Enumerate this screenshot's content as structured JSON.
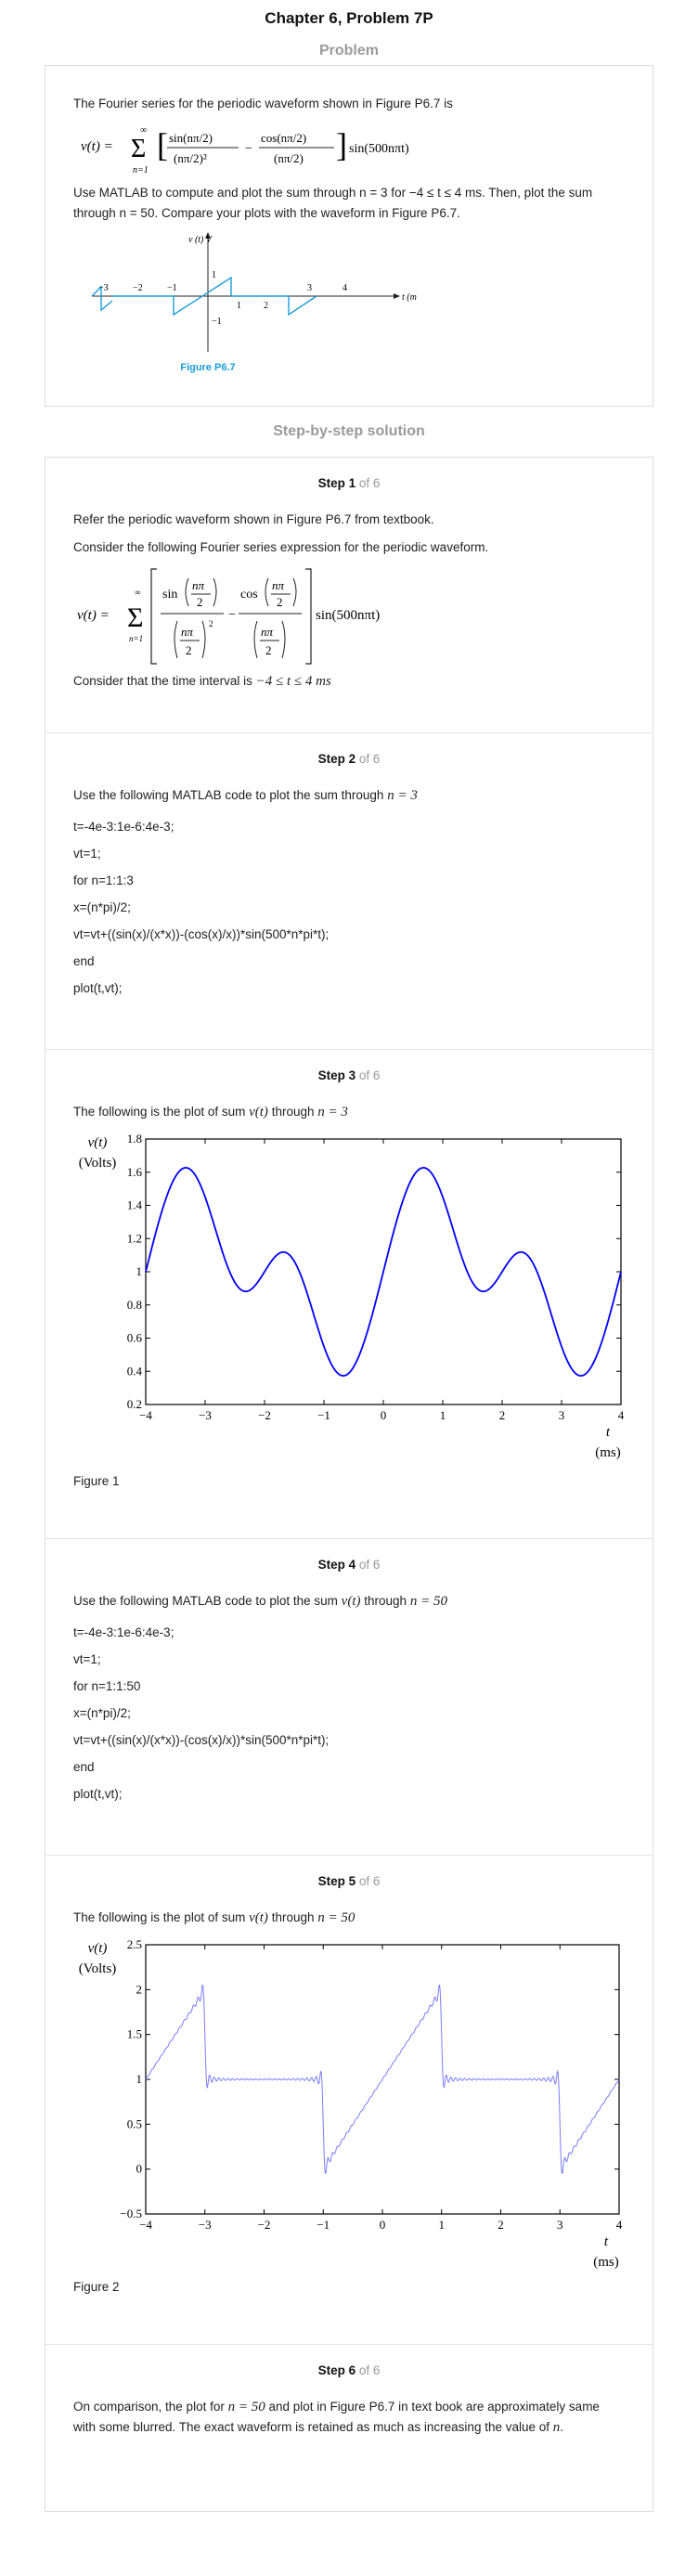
{
  "header": {
    "title": "Chapter 6, Problem 7P"
  },
  "problem": {
    "section_title": "Problem",
    "intro": "The Fourier series for the periodic waveform shown in Figure P6.7 is",
    "equation": {
      "lhs": "v(t) =",
      "sum_top": "∞",
      "sum_bottom": "n=1",
      "t1_num": "sin(nπ/2)",
      "t1_den": "(nπ/2)²",
      "minus": "−",
      "t2_num": "cos(nπ/2)",
      "t2_den": "(nπ/2)",
      "tail": "sin(500nπt)"
    },
    "instruction": "Use MATLAB to compute and plot the sum through n = 3 for −4 ≤ t ≤ 4 ms. Then, plot the sum through n = 50. Compare your plots with the waveform in Figure P6.7.",
    "figure": {
      "ylabel": "v (t) V",
      "xlabel": "t (ms)",
      "caption": "Figure P6.7",
      "y_ticks": [
        "1",
        "−1"
      ],
      "x_ticks": [
        "−3",
        "−2",
        "−1",
        "1",
        "2",
        "3",
        "4"
      ]
    }
  },
  "solution": {
    "section_title": "Step-by-step solution",
    "step_word": "Step",
    "of_text": "of 6",
    "steps": [
      {
        "num": "1",
        "p1": "Refer the periodic waveform shown in Figure P6.7 from textbook.",
        "p2": "Consider the following Fourier series expression for the periodic waveform.",
        "eq": {
          "lhs": "v(t) =",
          "sum_top": "∞",
          "sum_bottom": "n=1",
          "sin": "sin",
          "cos": "cos",
          "npi": "nπ",
          "two": "2",
          "sq": "2",
          "minus": "−",
          "tail": "sin(500nπt)"
        },
        "p3": "Consider that the time interval is",
        "p3_math": "−4 ≤ t ≤ 4 ms"
      },
      {
        "num": "2",
        "intro": "Use the following MATLAB code to plot the sum through",
        "intro_math": "n = 3",
        "code": [
          "t=-4e-3:1e-6:4e-3;",
          "vt=1;",
          "for n=1:1:3",
          "x=(n*pi)/2;",
          "vt=vt+((sin(x)/(x*x))-(cos(x)/x))*sin(500*n*pi*t);",
          "end",
          "plot(t,vt);"
        ]
      },
      {
        "num": "3",
        "intro": "The following is the plot of sum",
        "intro_math1": "v(t)",
        "intro_mid": "through",
        "intro_math2": "n = 3",
        "caption": "Figure 1"
      },
      {
        "num": "4",
        "intro": "Use the following MATLAB code to plot the sum",
        "intro_math1": "v(t)",
        "intro_mid": "through",
        "intro_math2": "n = 50",
        "code": [
          "t=-4e-3:1e-6:4e-3;",
          "vt=1;",
          "for n=1:1:50",
          "x=(n*pi)/2;",
          "vt=vt+((sin(x)/(x*x))-(cos(x)/x))*sin(500*n*pi*t);",
          "end",
          "plot(t,vt);"
        ]
      },
      {
        "num": "5",
        "intro": "The following is the plot of sum",
        "intro_math1": "v(t)",
        "intro_mid": "through",
        "intro_math2": "n = 50",
        "caption": "Figure 2"
      },
      {
        "num": "6",
        "p_a": "On comparison, the plot for",
        "p_math": "n = 50",
        "p_b": "and plot in Figure P6.7 in text book are approximately same with some blurred. The exact waveform is retained as much as increasing the value of",
        "p_math2": "n",
        "p_end": "."
      }
    ]
  },
  "chart_data": [
    {
      "type": "line",
      "title": "",
      "ylabel": "v(t) (Volts)",
      "ylabel_line1": "v(t)",
      "ylabel_line2": "(Volts)",
      "xlabel": "t (ms)",
      "xlabel_line1": "t",
      "xlabel_line2": "(ms)",
      "xlim": [
        -4,
        4
      ],
      "ylim": [
        0.2,
        1.8
      ],
      "x_ticks": [
        "−4",
        "−3",
        "−2",
        "−1",
        "0",
        "1",
        "2",
        "3",
        "4"
      ],
      "y_ticks": [
        "0.2",
        "0.4",
        "0.6",
        "0.8",
        "1",
        "1.2",
        "1.4",
        "1.6",
        "1.8"
      ],
      "grid": false,
      "series": [
        {
          "color": "#0000ff",
          "n_terms": 3
        }
      ]
    },
    {
      "type": "line",
      "title": "",
      "ylabel": "v(t) (Volts)",
      "ylabel_line1": "v(t)",
      "ylabel_line2": "(Volts)",
      "xlabel": "t (ms)",
      "xlabel_line1": "t",
      "xlabel_line2": "(ms)",
      "xlim": [
        -4,
        4
      ],
      "ylim": [
        -0.5,
        2.5
      ],
      "x_ticks": [
        "−4",
        "−3",
        "−2",
        "−1",
        "0",
        "1",
        "2",
        "3",
        "4"
      ],
      "y_ticks": [
        "−0.5",
        "0",
        "0.5",
        "1",
        "1.5",
        "2",
        "2.5"
      ],
      "grid": false,
      "series": [
        {
          "color": "#7b7bff",
          "n_terms": 50
        }
      ]
    }
  ],
  "colors": {
    "figure_blue": "#1a9cd8",
    "plot1_line": "#0000ff",
    "plot2_line": "#7b7bff",
    "muted": "#9a9a9a"
  }
}
